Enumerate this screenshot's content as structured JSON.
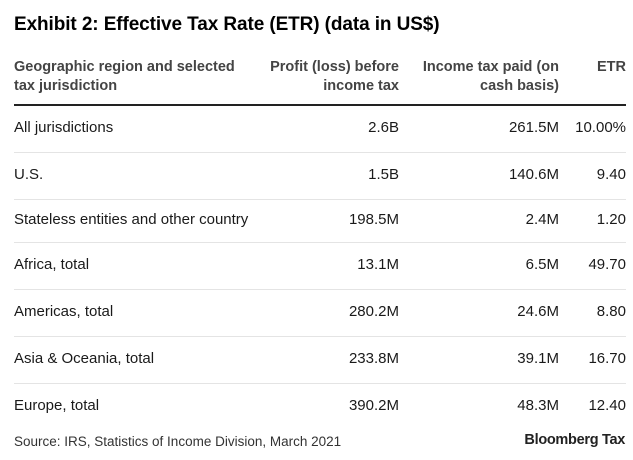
{
  "title": "Exhibit 2: Effective Tax Rate (ETR) (data in US$)",
  "table": {
    "headers": {
      "region": "Geographic region and selected tax jurisdiction",
      "profit": "Profit (loss) before income tax",
      "tax": "Income tax paid (on cash basis)",
      "etr": "ETR"
    },
    "rows": [
      {
        "region": "All jurisdictions",
        "profit": "2.6B",
        "tax": "261.5M",
        "etr": "10.00%"
      },
      {
        "region": "U.S.",
        "profit": "1.5B",
        "tax": "140.6M",
        "etr": "9.40"
      },
      {
        "region": "Stateless entities and other country",
        "profit": "198.5M",
        "tax": "2.4M",
        "etr": "1.20"
      },
      {
        "region": "Africa, total",
        "profit": "13.1M",
        "tax": "6.5M",
        "etr": "49.70"
      },
      {
        "region": "Americas, total",
        "profit": "280.2M",
        "tax": "24.6M",
        "etr": "8.80"
      },
      {
        "region": "Asia & Oceania, total",
        "profit": "233.8M",
        "tax": "39.1M",
        "etr": "16.70"
      },
      {
        "region": "Europe, total",
        "profit": "390.2M",
        "tax": "48.3M",
        "etr": "12.40"
      }
    ]
  },
  "footer": {
    "source": "Source: IRS, Statistics of Income Division, March 2021",
    "logo": "Bloomberg Tax"
  }
}
